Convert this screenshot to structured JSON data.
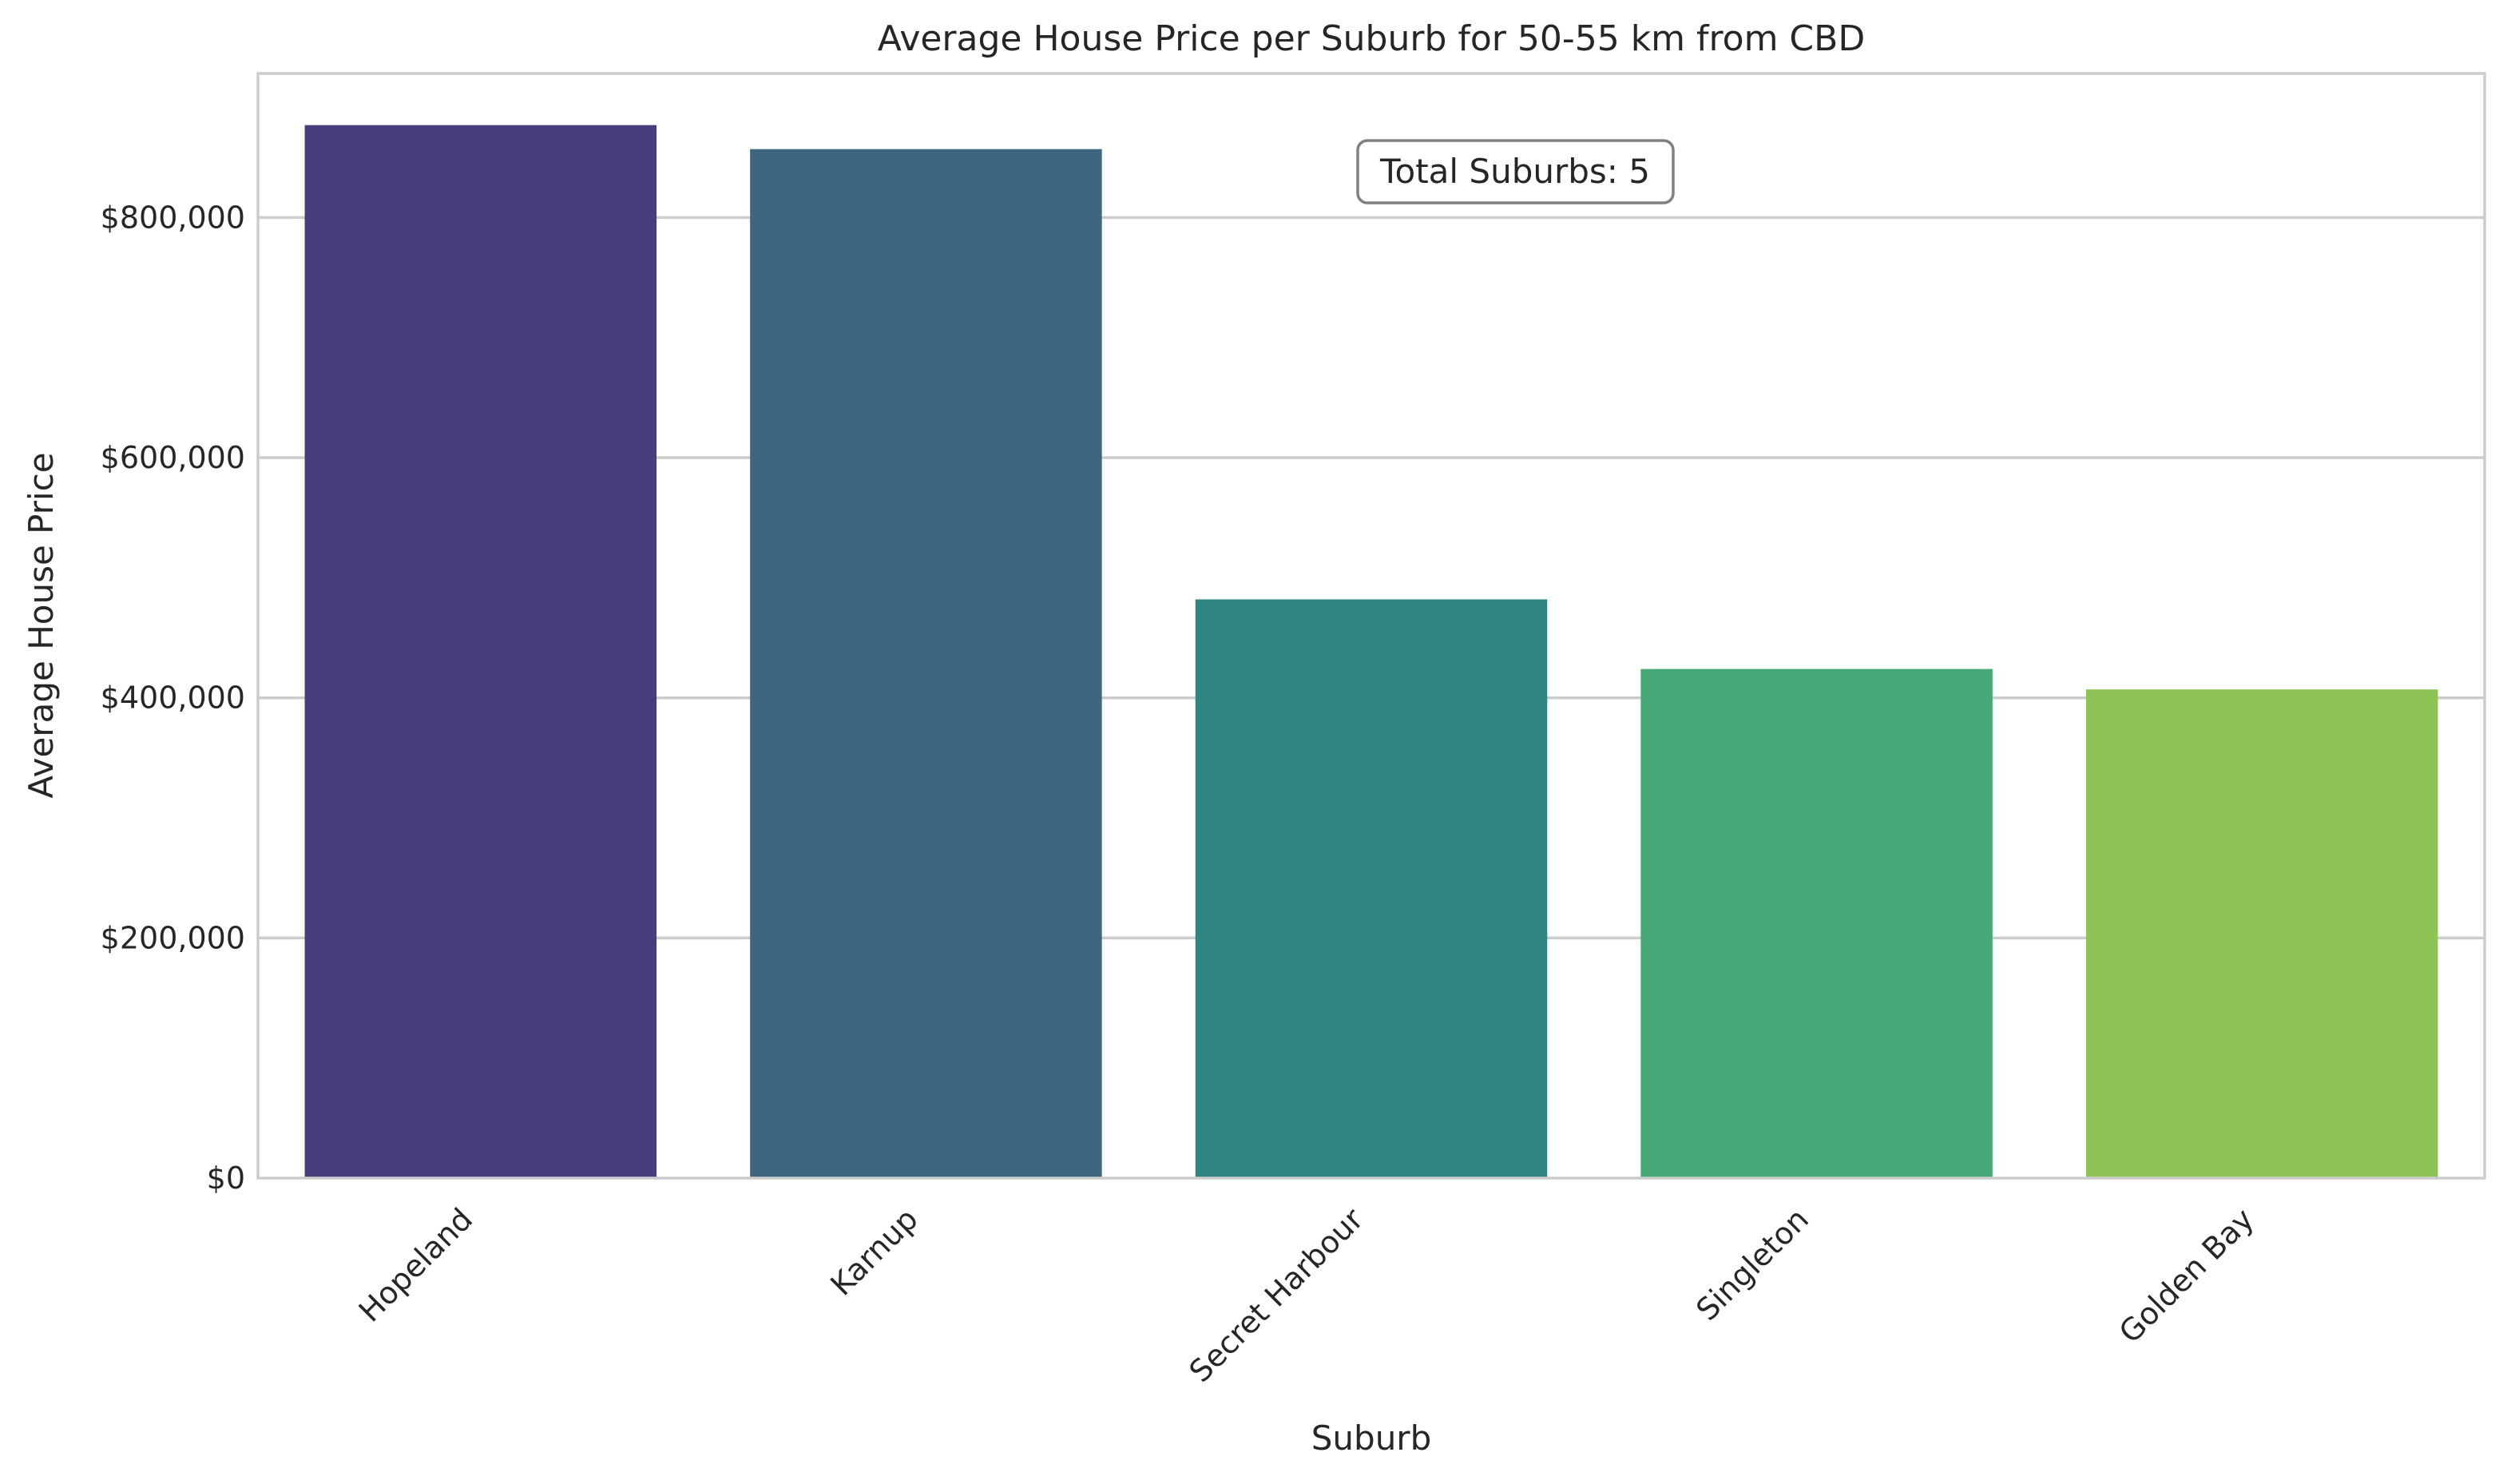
{
  "chart_data": {
    "type": "bar",
    "title": "Average House Price per Suburb for 50-55 km from CBD",
    "xlabel": "Suburb",
    "ylabel": "Average House Price",
    "categories": [
      "Hopeland",
      "Karnup",
      "Secret Harbour",
      "Singleton",
      "Golden Bay"
    ],
    "values": [
      877000,
      857000,
      482000,
      424000,
      407000
    ],
    "colors": [
      "#483d7a",
      "#3d6680",
      "#2e847e",
      "#46a877",
      "#8ec455"
    ],
    "ylim": [
      0,
      920000
    ],
    "yticks": [
      0,
      200000,
      400000,
      600000,
      800000
    ],
    "ytick_labels": [
      "$0",
      "$200,000",
      "$400,000",
      "$600,000",
      "$800,000"
    ],
    "grid": "horizontal",
    "annotation": "Total Suburbs: 5"
  }
}
